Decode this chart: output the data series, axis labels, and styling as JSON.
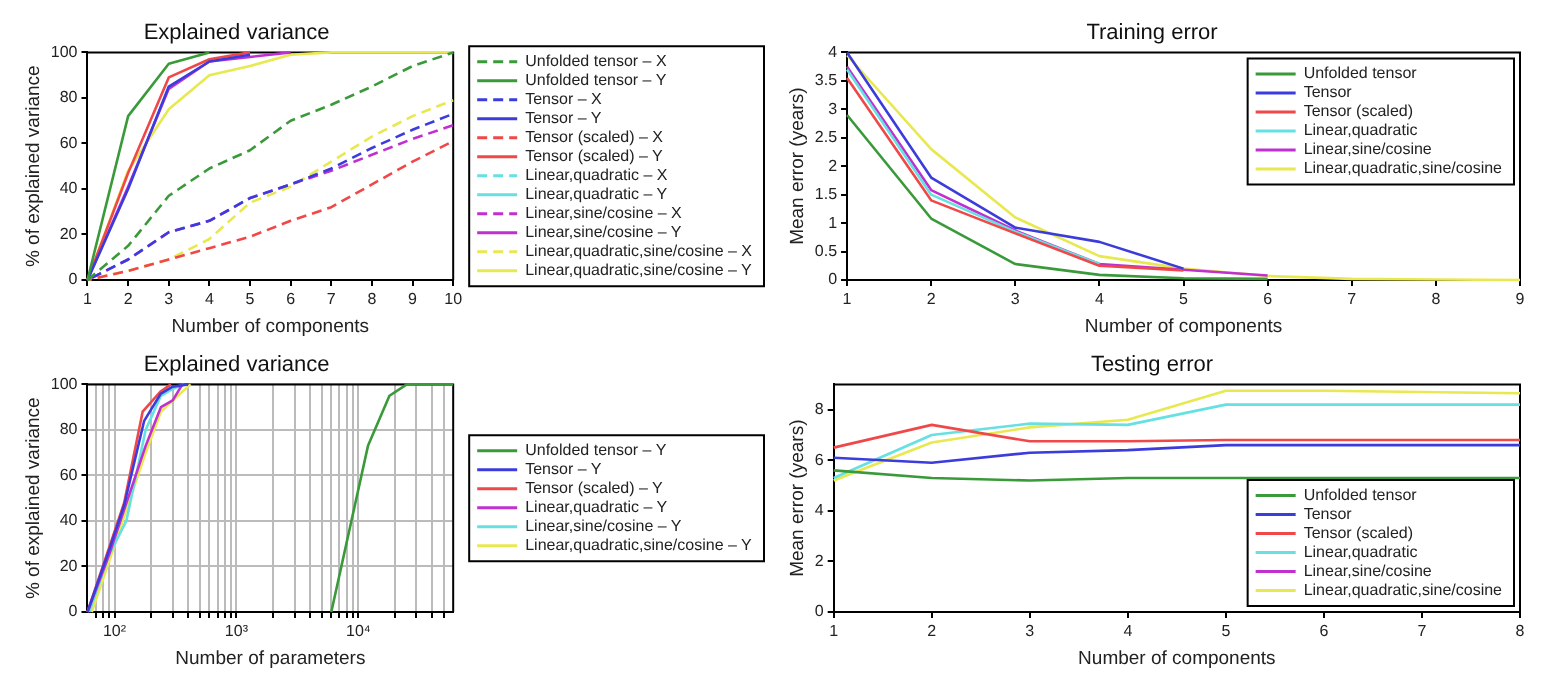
{
  "chart_data": [
    {
      "type": "line",
      "title": "Explained variance",
      "xlabel": "Number of components",
      "ylabel": "% of explained variance",
      "x": [
        1,
        2,
        3,
        4,
        5,
        6,
        7,
        8,
        9,
        10
      ],
      "xlim": [
        1,
        10
      ],
      "ylim": [
        0,
        100
      ],
      "xticks": [
        1,
        2,
        3,
        4,
        5,
        6,
        7,
        8,
        9,
        10
      ],
      "yticks": [
        0,
        20,
        40,
        60,
        80,
        100
      ],
      "legend": "right",
      "marker": "none",
      "series": [
        {
          "name": "Unfolded tensor – X",
          "color": "#3a9a3a",
          "line_style": "dashed",
          "values": [
            0,
            15,
            37,
            49,
            57,
            70,
            77,
            85,
            94,
            100
          ]
        },
        {
          "name": "Unfolded tensor – Y",
          "color": "#3a9a3a",
          "line_style": "solid",
          "values": [
            0,
            72,
            95,
            100,
            null,
            null,
            null,
            null,
            null,
            null
          ]
        },
        {
          "name": "Tensor – X",
          "color": "#3c3cdc",
          "line_style": "dashed",
          "values": [
            0,
            9,
            21,
            26,
            36,
            42,
            49,
            58,
            66,
            73
          ]
        },
        {
          "name": "Tensor – Y",
          "color": "#3c3cdc",
          "line_style": "solid",
          "values": [
            0,
            40,
            85,
            96,
            99,
            null,
            null,
            null,
            null,
            null
          ]
        },
        {
          "name": "Tensor (scaled) – X",
          "color": "#f04848",
          "line_style": "dashed",
          "values": [
            0,
            4,
            9,
            14,
            19,
            26,
            32,
            42,
            52,
            61
          ]
        },
        {
          "name": "Tensor (scaled) – Y",
          "color": "#f04848",
          "line_style": "solid",
          "values": [
            0,
            47,
            89,
            97,
            100,
            null,
            null,
            null,
            null,
            null
          ]
        },
        {
          "name": "Linear,quadratic – X",
          "color": "#66e0e0",
          "line_style": "dashed",
          "values": [
            null,
            null,
            null,
            null,
            null,
            null,
            null,
            null,
            null,
            null
          ]
        },
        {
          "name": "Linear,quadratic – Y",
          "color": "#66e0e0",
          "line_style": "solid",
          "values": [
            null,
            null,
            null,
            null,
            null,
            null,
            null,
            null,
            null,
            null
          ]
        },
        {
          "name": "Linear,sine/cosine – X",
          "color": "#c030d0",
          "line_style": "dashed",
          "values": [
            0,
            9,
            21,
            26,
            36,
            42,
            48,
            55,
            62,
            68
          ]
        },
        {
          "name": "Linear,sine/cosine – Y",
          "color": "#c030d0",
          "line_style": "solid",
          "values": [
            0,
            41,
            84,
            96,
            98,
            100,
            null,
            null,
            null,
            null
          ]
        },
        {
          "name": "Linear,quadratic,sine/cosine – X",
          "color": "#e8e850",
          "line_style": "dashed",
          "values": [
            0,
            4,
            9,
            18,
            34,
            41,
            52,
            63,
            72,
            79
          ]
        },
        {
          "name": "Linear,quadratic,sine/cosine – Y",
          "color": "#e8e850",
          "line_style": "solid",
          "values": [
            0,
            48,
            75,
            90,
            94,
            99,
            100,
            100,
            100,
            100
          ]
        }
      ]
    },
    {
      "type": "line",
      "title": "Training error",
      "xlabel": "Number of components",
      "ylabel": "Mean error (years)",
      "x": [
        1,
        2,
        3,
        4,
        5,
        6,
        7,
        8,
        9
      ],
      "xlim": [
        1,
        9
      ],
      "ylim": [
        0,
        4
      ],
      "xticks": [
        1,
        2,
        3,
        4,
        5,
        6,
        7,
        8,
        9
      ],
      "yticks": [
        0,
        0.5,
        1,
        1.5,
        2,
        2.5,
        3,
        3.5,
        4
      ],
      "legend": "top right",
      "marker": "none",
      "series": [
        {
          "name": "Unfolded tensor",
          "color": "#3a9a3a",
          "line_style": "solid",
          "values": [
            2.9,
            1.08,
            0.28,
            0.09,
            0.03,
            0.02,
            null,
            null,
            null
          ]
        },
        {
          "name": "Tensor",
          "color": "#3c3cdc",
          "line_style": "solid",
          "values": [
            4,
            1.8,
            0.92,
            0.67,
            0.2,
            null,
            null,
            null,
            null
          ]
        },
        {
          "name": "Tensor (scaled)",
          "color": "#f04848",
          "line_style": "solid",
          "values": [
            3.55,
            1.4,
            0.82,
            0.25,
            0.17,
            null,
            null,
            null,
            null
          ]
        },
        {
          "name": "Linear,quadratic",
          "color": "#66e0e0",
          "line_style": "solid",
          "values": [
            3.7,
            1.5,
            0.85,
            0.28,
            null,
            null,
            null,
            null,
            null
          ]
        },
        {
          "name": "Linear,sine/cosine",
          "color": "#c030d0",
          "line_style": "solid",
          "values": [
            3.75,
            1.58,
            0.87,
            0.28,
            0.18,
            0.08,
            null,
            null,
            null
          ]
        },
        {
          "name": "Linear,quadratic,sine/cosine",
          "color": "#e8e850",
          "line_style": "solid",
          "values": [
            3.95,
            2.3,
            1.1,
            0.42,
            0.2,
            0.07,
            0.02,
            0.01,
            0
          ]
        }
      ]
    },
    {
      "type": "line",
      "title": "Explained variance",
      "xlabel": "Number of parameters",
      "ylabel": "% of explained variance",
      "log": "x",
      "grid": true,
      "xlim": [
        60,
        60000
      ],
      "ylim": [
        0,
        100
      ],
      "yticks": [
        0,
        20,
        40,
        60,
        80,
        100
      ],
      "legend": "right",
      "marker": "none",
      "xticks": [
        {
          "value": 70,
          "label": null
        },
        {
          "value": 80,
          "label": null
        },
        {
          "value": 90,
          "label": null
        },
        {
          "value": 100,
          "label": "10²"
        },
        {
          "value": 200,
          "label": null
        },
        {
          "value": 300,
          "label": null
        },
        {
          "value": 400,
          "label": null
        },
        {
          "value": 500,
          "label": null
        },
        {
          "value": 600,
          "label": null
        },
        {
          "value": 700,
          "label": null
        },
        {
          "value": 800,
          "label": null
        },
        {
          "value": 900,
          "label": null
        },
        {
          "value": 1000,
          "label": "10³"
        },
        {
          "value": 2000,
          "label": null
        },
        {
          "value": 3000,
          "label": null
        },
        {
          "value": 4000,
          "label": null
        },
        {
          "value": 5000,
          "label": null
        },
        {
          "value": 6000,
          "label": null
        },
        {
          "value": 7000,
          "label": null
        },
        {
          "value": 8000,
          "label": null
        },
        {
          "value": 9000,
          "label": null
        },
        {
          "value": 10000,
          "label": "10⁴"
        },
        {
          "value": 20000,
          "label": null
        },
        {
          "value": 30000,
          "label": null
        },
        {
          "value": 40000,
          "label": null
        },
        {
          "value": 50000,
          "label": null
        }
      ],
      "series": [
        {
          "name": "Unfolded tensor – Y",
          "color": "#3a9a3a",
          "line_style": "solid",
          "x": [
            6000,
            12000,
            18000,
            25000,
            60000
          ],
          "values": [
            0,
            73,
            95,
            100,
            100
          ]
        },
        {
          "name": "Tensor – Y",
          "color": "#3c3cdc",
          "line_style": "solid",
          "x": [
            60,
            90,
            120,
            175,
            240,
            300,
            400
          ],
          "values": [
            0,
            27,
            47,
            84,
            96,
            99,
            100
          ]
        },
        {
          "name": "Tensor (scaled) – Y",
          "color": "#f04848",
          "line_style": "solid",
          "x": [
            60,
            90,
            120,
            170,
            240,
            290
          ],
          "values": [
            0,
            28,
            48,
            88,
            97,
            100
          ]
        },
        {
          "name": "Linear,quadratic – Y",
          "color": "#c030d0",
          "line_style": "solid",
          "x": [
            60,
            90,
            120,
            180,
            240,
            300,
            360
          ],
          "values": [
            0,
            25,
            45,
            73,
            90,
            93,
            100
          ]
        },
        {
          "name": "Linear,sine/cosine – Y",
          "color": "#66e0e0",
          "line_style": "solid",
          "x": [
            62,
            90,
            125,
            180,
            240,
            300,
            370
          ],
          "values": [
            0,
            25,
            40,
            80,
            95,
            98,
            100
          ]
        },
        {
          "name": "Linear,quadratic,sine/cosine – Y",
          "color": "#e8e850",
          "line_style": "solid",
          "x": [
            65,
            90,
            120,
            180,
            240,
            330,
            420
          ],
          "values": [
            0,
            22,
            42,
            70,
            88,
            95,
            100
          ]
        }
      ]
    },
    {
      "type": "line",
      "title": "Testing error",
      "xlabel": "Number of components",
      "ylabel": "Mean error (years)",
      "x": [
        1,
        2,
        3,
        4,
        5,
        6,
        7,
        8
      ],
      "xlim": [
        1,
        8
      ],
      "ylim": [
        0,
        9
      ],
      "xticks": [
        1,
        2,
        3,
        4,
        5,
        6,
        7,
        8
      ],
      "yticks": [
        0,
        2,
        4,
        6,
        8
      ],
      "legend": "bottom right",
      "marker": "none",
      "series": [
        {
          "name": "Unfolded tensor",
          "color": "#3a9a3a",
          "line_style": "solid",
          "values": [
            5.6,
            5.3,
            5.2,
            5.3,
            5.3,
            5.3,
            5.3,
            5.3
          ]
        },
        {
          "name": "Tensor",
          "color": "#3c3cdc",
          "line_style": "solid",
          "values": [
            6.1,
            5.9,
            6.3,
            6.4,
            6.6,
            6.6,
            6.6,
            6.6
          ]
        },
        {
          "name": "Tensor (scaled)",
          "color": "#f04848",
          "line_style": "solid",
          "values": [
            6.5,
            7.4,
            6.75,
            6.75,
            6.8,
            6.8,
            6.8,
            6.8
          ]
        },
        {
          "name": "Linear,quadratic",
          "color": "#66e0e0",
          "line_style": "solid",
          "values": [
            5.3,
            7,
            7.45,
            7.4,
            8.2,
            8.2,
            8.2,
            8.2
          ]
        },
        {
          "name": "Linear,sine/cosine",
          "color": "#c030d0",
          "line_style": "solid",
          "values": [
            null,
            null,
            null,
            null,
            null,
            null,
            null,
            null
          ]
        },
        {
          "name": "Linear,quadratic,sine/cosine",
          "color": "#e8e850",
          "line_style": "solid",
          "values": [
            5.2,
            6.7,
            7.3,
            7.6,
            8.75,
            8.75,
            8.7,
            8.65
          ]
        }
      ]
    }
  ]
}
